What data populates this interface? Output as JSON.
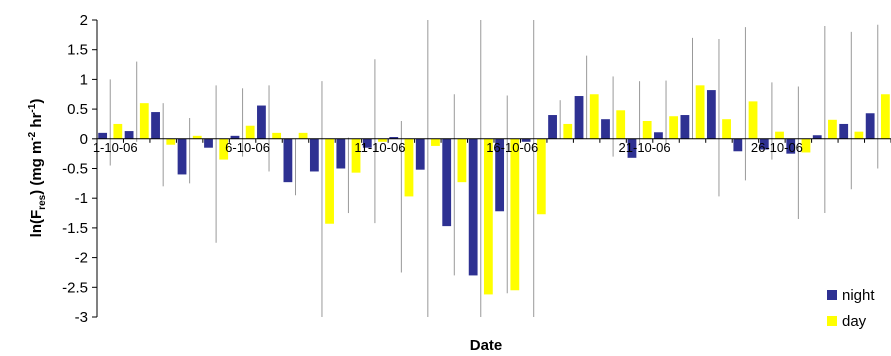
{
  "chart_data": {
    "type": "bar",
    "title": "",
    "xlabel": "Date",
    "ylabel": {
      "prefix": "ln(F",
      "sub": "res",
      "mid": ") (mg m",
      "sup1": "-2",
      "mid2": " hr",
      "sup2": "-1",
      "suffix": ")"
    },
    "ylim": [
      -3,
      2
    ],
    "yticks": [
      2,
      1.5,
      1,
      0.5,
      0,
      -0.5,
      -1,
      -1.5,
      -2,
      -2.5,
      -3
    ],
    "ytick_labels": [
      "2",
      "1.5",
      "1",
      "0.5",
      "0",
      "-0.5",
      "-1",
      "-1.5",
      "-2",
      "-2.5",
      "-3"
    ],
    "x_tick_labels": [
      {
        "label": "1-10-06",
        "index": 0
      },
      {
        "label": "6-10-06",
        "index": 5
      },
      {
        "label": "11-10-06",
        "index": 10
      },
      {
        "label": "16-10-06",
        "index": 15
      },
      {
        "label": "21-10-06",
        "index": 20
      },
      {
        "label": "26-10-06",
        "index": 25
      }
    ],
    "n_categories": 30,
    "legend_position": "bottom-right",
    "grid": false,
    "series": [
      {
        "name": "night",
        "color": "#2E3192",
        "values": [
          0.1,
          0.13,
          0.45,
          -0.6,
          -0.15,
          0.05,
          0.56,
          -0.73,
          -0.55,
          -0.5,
          -0.15,
          0.03,
          -0.52,
          -1.47,
          -2.3,
          -1.22,
          -0.05,
          0.4,
          0.72,
          0.33,
          -0.32,
          0.11,
          0.4,
          0.82,
          -0.21,
          -0.18,
          -0.25,
          0.06,
          0.25,
          0.43
        ]
      },
      {
        "name": "day",
        "color": "#FFFF00",
        "values": [
          0.25,
          0.6,
          -0.1,
          0.05,
          -0.35,
          0.22,
          0.1,
          0.1,
          -1.43,
          -0.57,
          -0.05,
          -0.97,
          -0.12,
          -0.73,
          -2.62,
          -2.55,
          -1.27,
          0.25,
          0.75,
          0.48,
          0.3,
          0.38,
          0.9,
          0.33,
          0.63,
          0.12,
          -0.23,
          0.32,
          0.12,
          0.75
        ]
      }
    ],
    "error_bars": {
      "color": "#999999",
      "ranges": [
        [
          -0.45,
          1.0
        ],
        [
          -0.05,
          1.3
        ],
        [
          -0.8,
          0.6
        ],
        [
          -0.75,
          0.35
        ],
        [
          -1.75,
          0.9
        ],
        [
          -0.3,
          0.85
        ],
        [
          -0.55,
          0.9
        ],
        [
          -0.95,
          0.0
        ],
        [
          -3.0,
          0.97
        ],
        [
          -1.25,
          0.02
        ],
        [
          -1.42,
          1.34
        ],
        [
          -2.25,
          0.3
        ],
        [
          -3.0,
          2.0
        ],
        [
          -2.3,
          0.75
        ],
        [
          -3.0,
          2.0
        ],
        [
          -2.6,
          0.73
        ],
        [
          -3.0,
          2.0
        ],
        [
          0.0,
          0.65
        ],
        [
          0.0,
          1.4
        ],
        [
          -0.3,
          1.05
        ],
        [
          -0.1,
          0.97
        ],
        [
          -0.1,
          0.98
        ],
        [
          0.0,
          1.7
        ],
        [
          -0.97,
          1.68
        ],
        [
          -0.7,
          1.88
        ],
        [
          -0.35,
          0.95
        ],
        [
          -1.35,
          0.88
        ],
        [
          -1.25,
          1.9
        ],
        [
          -0.85,
          1.8
        ],
        [
          -0.5,
          1.92
        ]
      ]
    }
  }
}
